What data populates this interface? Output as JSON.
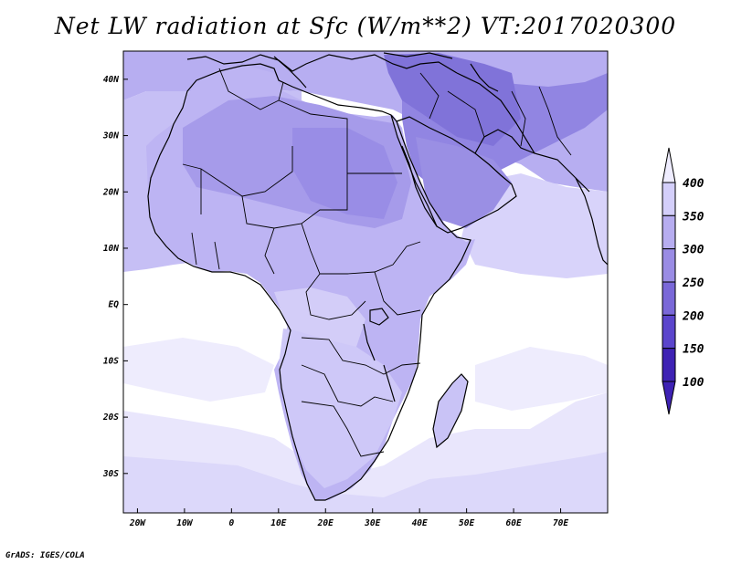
{
  "title": "Net LW radiation at Sfc (W/m**2) VT:2017020300",
  "credit": "GrADS: IGES/COLA",
  "map": {
    "lon_range": [
      -23,
      80
    ],
    "lat_range": [
      -37,
      45
    ],
    "lon_ticks": [
      {
        "value": -20,
        "label": "20W"
      },
      {
        "value": -10,
        "label": "10W"
      },
      {
        "value": 0,
        "label": "0"
      },
      {
        "value": 10,
        "label": "10E"
      },
      {
        "value": 20,
        "label": "20E"
      },
      {
        "value": 30,
        "label": "30E"
      },
      {
        "value": 40,
        "label": "40E"
      },
      {
        "value": 50,
        "label": "50E"
      },
      {
        "value": 60,
        "label": "60E"
      },
      {
        "value": 70,
        "label": "70E"
      }
    ],
    "lat_ticks": [
      {
        "value": 40,
        "label": "40N"
      },
      {
        "value": 30,
        "label": "30N"
      },
      {
        "value": 20,
        "label": "20N"
      },
      {
        "value": 10,
        "label": "10N"
      },
      {
        "value": 0,
        "label": "EQ"
      },
      {
        "value": -10,
        "label": "10S"
      },
      {
        "value": -20,
        "label": "20S"
      },
      {
        "value": -30,
        "label": "30S"
      }
    ]
  },
  "colorbar": {
    "levels": [
      100,
      150,
      200,
      250,
      300,
      350,
      400
    ],
    "labels": [
      "100",
      "150",
      "200",
      "250",
      "300",
      "350",
      "400"
    ],
    "colors": [
      "#3e22b4",
      "#5b45cc",
      "#7a68d8",
      "#9a8ce4",
      "#b7adf0",
      "#d4cffa",
      "#efedff"
    ]
  },
  "colors": {
    "ocean_default": "#ffffff",
    "land_base": "#b9b0f2",
    "sahara": "#a79cec",
    "middle_east": "#8e82e0",
    "iran_plateau": "#8376dc",
    "sw_africa": "#c9c3f6",
    "ocean_band": "#e8e6fc",
    "coastline": "#000000"
  }
}
